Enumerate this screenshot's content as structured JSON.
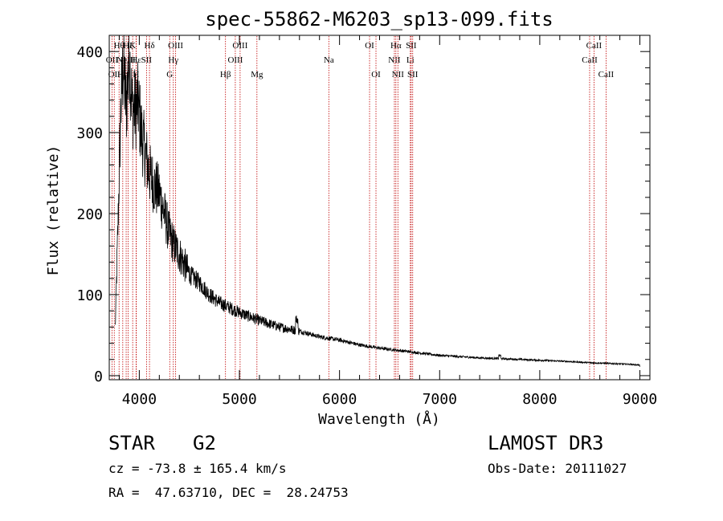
{
  "chart_data": {
    "type": "line",
    "title": "spec-55862-M6203_sp13-099.fits",
    "xlabel": "Wavelength (Å)",
    "ylabel": "Flux (relative)",
    "xlim": [
      3700,
      9100
    ],
    "ylim": [
      -5,
      420
    ],
    "x_ticks": [
      4000,
      5000,
      6000,
      7000,
      8000,
      9000
    ],
    "x_tick_labels": [
      "4000",
      "5000",
      "6000",
      "7000",
      "8000",
      "9000"
    ],
    "y_ticks": [
      0,
      100,
      200,
      300,
      400
    ],
    "y_tick_labels": [
      "0",
      "100",
      "200",
      "300",
      "400"
    ],
    "grid": false,
    "spectrum_anchor_points": [
      [
        3760,
        60
      ],
      [
        3790,
        200
      ],
      [
        3815,
        330
      ],
      [
        3840,
        385
      ],
      [
        3870,
        330
      ],
      [
        3900,
        400
      ],
      [
        3930,
        330
      ],
      [
        3960,
        330
      ],
      [
        3990,
        335
      ],
      [
        4020,
        300
      ],
      [
        4050,
        280
      ],
      [
        4100,
        250
      ],
      [
        4150,
        235
      ],
      [
        4200,
        225
      ],
      [
        4300,
        175
      ],
      [
        4350,
        160
      ],
      [
        4400,
        150
      ],
      [
        4500,
        125
      ],
      [
        4600,
        115
      ],
      [
        4700,
        100
      ],
      [
        4800,
        90
      ],
      [
        5000,
        78
      ],
      [
        5200,
        68
      ],
      [
        5400,
        60
      ],
      [
        5600,
        55
      ],
      [
        5800,
        48
      ],
      [
        6000,
        44
      ],
      [
        6200,
        38
      ],
      [
        6400,
        34
      ],
      [
        6600,
        31
      ],
      [
        6800,
        28
      ],
      [
        7000,
        25
      ],
      [
        7400,
        22
      ],
      [
        7800,
        20
      ],
      [
        8200,
        18
      ],
      [
        8500,
        16
      ],
      [
        8700,
        15
      ],
      [
        8900,
        14
      ],
      [
        9000,
        13
      ]
    ],
    "spectral_lines": [
      {
        "x": 3727,
        "row": 1,
        "label": "OII"
      },
      {
        "x": 3750,
        "row": 2,
        "label": "OII"
      },
      {
        "x": 3798,
        "row": 0,
        "label": "Hθ"
      },
      {
        "x": 3835,
        "row": 2,
        "label": "Hη"
      },
      {
        "x": 3869,
        "row": 1,
        "label": "NeIII"
      },
      {
        "x": 3889,
        "row": 0,
        "label": "Hζ"
      },
      {
        "x": 3934,
        "row": 0,
        "label": "K"
      },
      {
        "x": 3968,
        "row": 2,
        "label": "H"
      },
      {
        "x": 3970,
        "row": 1,
        "label": "Hε"
      },
      {
        "x": 4072,
        "row": 1,
        "label": "SII"
      },
      {
        "x": 4102,
        "row": 0,
        "label": "Hδ"
      },
      {
        "x": 4304,
        "row": 2,
        "label": "G"
      },
      {
        "x": 4340,
        "row": 1,
        "label": "Hγ"
      },
      {
        "x": 4363,
        "row": 0,
        "label": "OIII"
      },
      {
        "x": 4861,
        "row": 2,
        "label": "Hβ"
      },
      {
        "x": 4959,
        "row": 1,
        "label": "OIII"
      },
      {
        "x": 5007,
        "row": 0,
        "label": "OIII"
      },
      {
        "x": 5175,
        "row": 2,
        "label": "Mg"
      },
      {
        "x": 5893,
        "row": 1,
        "label": "Na"
      },
      {
        "x": 6300,
        "row": 0,
        "label": "OI"
      },
      {
        "x": 6364,
        "row": 2,
        "label": "OI"
      },
      {
        "x": 6548,
        "row": 1,
        "label": "NII"
      },
      {
        "x": 6563,
        "row": 0,
        "label": "Hα"
      },
      {
        "x": 6583,
        "row": 2,
        "label": "NII"
      },
      {
        "x": 6707,
        "row": 1,
        "label": "Li"
      },
      {
        "x": 6716,
        "row": 0,
        "label": "SII"
      },
      {
        "x": 6731,
        "row": 2,
        "label": "SII"
      },
      {
        "x": 8498,
        "row": 1,
        "label": "CaII"
      },
      {
        "x": 8542,
        "row": 0,
        "label": "CaII"
      },
      {
        "x": 8662,
        "row": 2,
        "label": "CaII"
      }
    ],
    "colors": {
      "spectrum": "#000000",
      "lines": "#c00000",
      "axes": "#000000"
    }
  },
  "info": {
    "class_label": "STAR",
    "subclass": "G2",
    "survey": "LAMOST DR3",
    "cz": "cz = -73.8 ± 165.4 km/s",
    "obs_date": "Obs-Date: 20111027",
    "coords": "RA =  47.63710, DEC =  28.24753"
  }
}
